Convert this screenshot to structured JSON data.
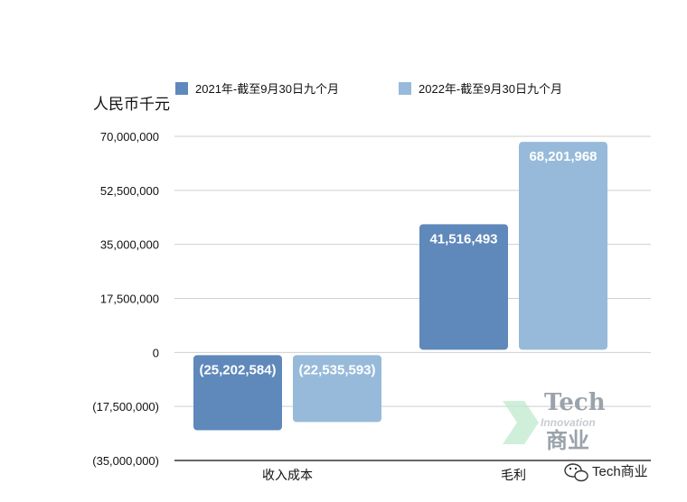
{
  "chart_data": {
    "type": "bar",
    "unit_label": "人民币千元",
    "categories": [
      "收入成本",
      "毛利"
    ],
    "series": [
      {
        "name": "2021年-截至9月30日九个月",
        "color": "#5f88bb",
        "values": [
          -25202584,
          41516493
        ]
      },
      {
        "name": "2022年-截至9月30日九个月",
        "color": "#97bada",
        "values": [
          -22535593,
          68201968
        ]
      }
    ],
    "data_labels": [
      [
        "(25,202,584)",
        "41,516,493"
      ],
      [
        "(22,535,593)",
        "68,201,968"
      ]
    ],
    "y_ticks": [
      70000000,
      52500000,
      35000000,
      17500000,
      0,
      -17500000,
      -35000000
    ],
    "y_tick_labels": [
      "70,000,000",
      "52,500,000",
      "35,000,000",
      "17,500,000",
      "0",
      "(17,500,000)",
      "(35,000,000)"
    ],
    "ylim": [
      -35000000,
      70000000
    ],
    "grid": true,
    "legend_position": "top"
  },
  "watermark": {
    "line1": "Tech",
    "line2": "Innovation",
    "line3": "商业"
  },
  "credit": {
    "text": "Tech商业",
    "icon": "wechat-icon"
  }
}
